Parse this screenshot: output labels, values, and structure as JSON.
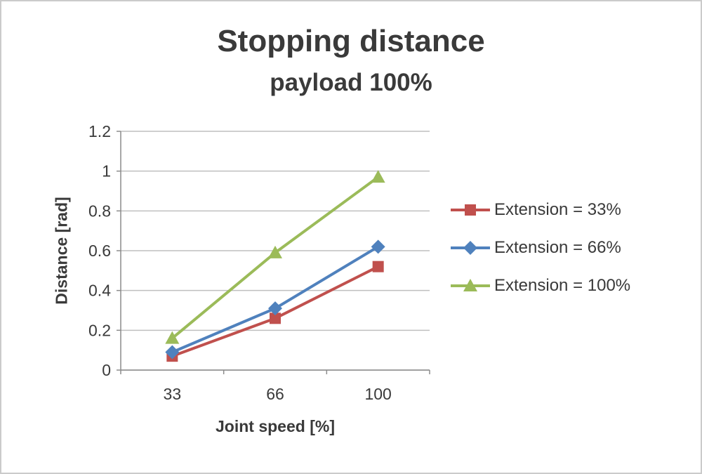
{
  "chart_data": {
    "type": "line",
    "title": "Stopping distance",
    "subtitle": "payload 100%",
    "xlabel": "Joint speed [%]",
    "ylabel": "Distance [rad]",
    "categories": [
      "33",
      "66",
      "100"
    ],
    "series": [
      {
        "name": "Extension = 33%",
        "marker": "square",
        "color": "#C0504D",
        "values": [
          0.07,
          0.26,
          0.52
        ]
      },
      {
        "name": "Extension = 66%",
        "marker": "diamond",
        "color": "#4F81BD",
        "values": [
          0.09,
          0.31,
          0.62
        ]
      },
      {
        "name": "Extension = 100%",
        "marker": "triangle",
        "color": "#9BBB59",
        "values": [
          0.16,
          0.59,
          0.97
        ]
      }
    ],
    "ylim": [
      0,
      1.2
    ],
    "ytick_step": 0.2,
    "yticks": [
      0,
      0.2,
      0.4,
      0.6,
      0.8,
      1,
      1.2
    ],
    "grid": true,
    "legend_position": "right",
    "colors": {
      "text": "#3a3a3a",
      "gridline": "#bfbfbf",
      "axis": "#8c8c8c",
      "background": "#ffffff"
    }
  }
}
